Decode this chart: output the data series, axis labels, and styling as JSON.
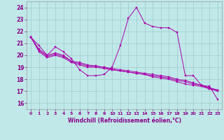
{
  "title": "",
  "xlabel": "Windchill (Refroidissement éolien,°C)",
  "ylabel": "",
  "xlim": [
    -0.5,
    23.5
  ],
  "ylim": [
    15.5,
    24.5
  ],
  "xticks": [
    0,
    1,
    2,
    3,
    4,
    5,
    6,
    7,
    8,
    9,
    10,
    11,
    12,
    13,
    14,
    15,
    16,
    17,
    18,
    19,
    20,
    21,
    22,
    23
  ],
  "yticks": [
    16,
    17,
    18,
    19,
    20,
    21,
    22,
    23,
    24
  ],
  "bg_color": "#c0e8e8",
  "grid_color": "#a0cccc",
  "line_color": "#aa00aa",
  "series1": [
    21.5,
    20.8,
    20.0,
    20.7,
    20.3,
    19.7,
    18.8,
    18.3,
    18.3,
    18.4,
    19.0,
    20.8,
    23.1,
    24.0,
    22.7,
    22.4,
    22.3,
    22.3,
    21.9,
    18.3,
    18.3,
    17.5,
    17.4,
    16.3
  ],
  "series2": [
    21.5,
    20.5,
    20.0,
    20.2,
    20.0,
    19.5,
    19.4,
    19.2,
    19.1,
    19.0,
    18.8,
    18.7,
    18.6,
    18.5,
    18.4,
    18.2,
    18.1,
    18.0,
    17.8,
    17.6,
    17.5,
    17.4,
    17.2,
    17.1
  ],
  "series3": [
    21.5,
    20.4,
    19.9,
    20.1,
    19.9,
    19.5,
    19.3,
    19.1,
    19.1,
    19.0,
    18.9,
    18.8,
    18.7,
    18.6,
    18.5,
    18.4,
    18.3,
    18.2,
    18.0,
    17.9,
    17.7,
    17.5,
    17.3,
    17.1
  ],
  "series4": [
    21.5,
    20.3,
    19.8,
    20.0,
    19.8,
    19.4,
    19.2,
    19.0,
    19.0,
    18.9,
    18.8,
    18.7,
    18.6,
    18.5,
    18.4,
    18.3,
    18.2,
    18.1,
    17.9,
    17.8,
    17.6,
    17.5,
    17.2,
    17.0
  ],
  "tick_color": "#880088",
  "label_color": "#880088"
}
